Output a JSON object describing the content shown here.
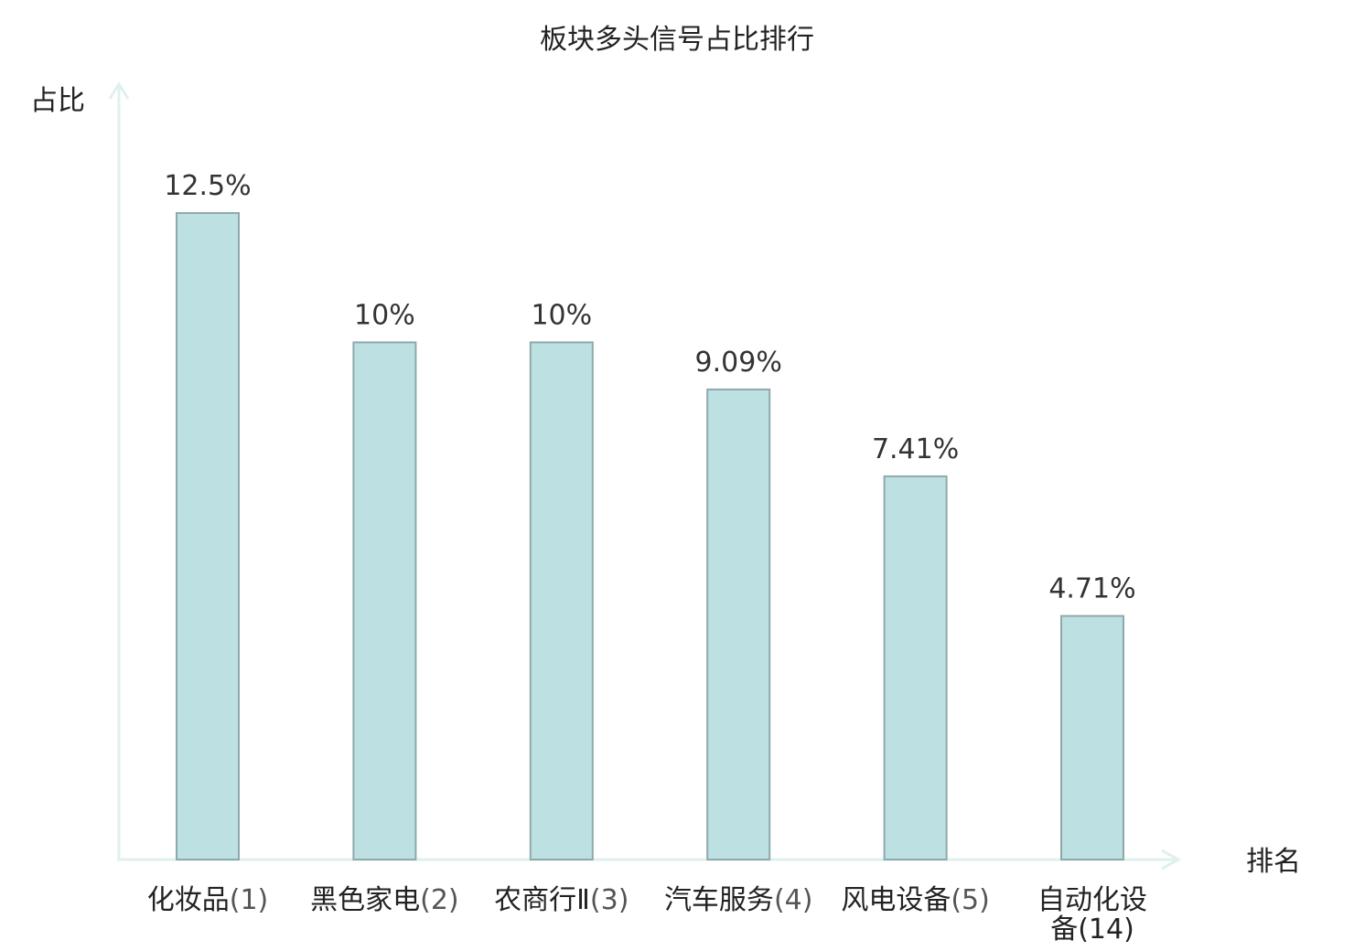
{
  "chart_data": {
    "type": "bar",
    "title": "板块多头信号占比排行",
    "xlabel": "排名",
    "ylabel": "占比",
    "ylim": [
      0,
      15
    ],
    "categories": [
      "化妆品(1)",
      "黑色家电(2)",
      "农商行Ⅱ(3)",
      "汽车服务(4)",
      "风电设备(5)",
      "自动化设备(14)"
    ],
    "category_names": [
      "化妆品",
      "黑色家电",
      "农商行Ⅱ",
      "汽车服务",
      "风电设备",
      "自动化设备"
    ],
    "category_ranks": [
      "(1)",
      "(2)",
      "(3)",
      "(4)",
      "(5)",
      "(14)"
    ],
    "values": [
      12.5,
      10,
      10,
      9.09,
      7.41,
      4.71
    ],
    "value_labels": [
      "12.5%",
      "10%",
      "10%",
      "9.09%",
      "7.41%",
      "4.71%"
    ],
    "highlight_index": 5,
    "grid": false,
    "colors": {
      "bar_fill": "#bde0e2",
      "bar_stroke": "#8fa9ab",
      "axis": "#dff1ee",
      "highlight_label": "#e01010",
      "text": "#222222"
    }
  }
}
